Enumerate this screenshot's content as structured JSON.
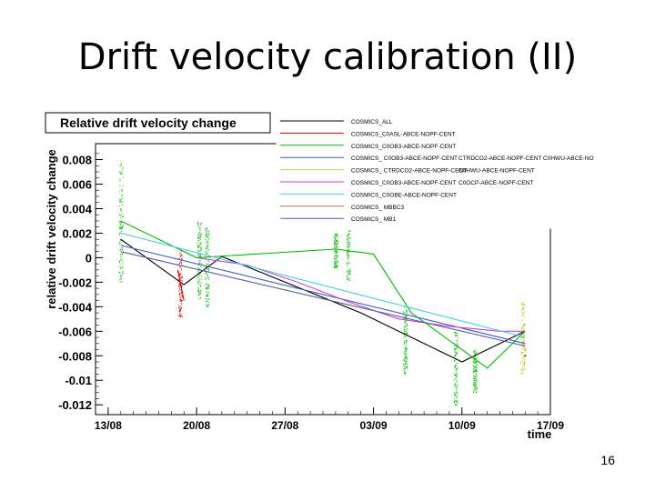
{
  "slide": {
    "title": "Drift velocity calibration (II)",
    "page_number": "16"
  },
  "chart_data": {
    "type": "scatter",
    "title": "Relative drift velocity change",
    "xlabel": "time",
    "ylabel": "relative drift velocity change",
    "x_ticks": [
      "13/08",
      "20/08",
      "27/08",
      "03/09",
      "10/09",
      "17/09"
    ],
    "y_ticks": [
      "0.008",
      "0.006",
      "0.004",
      "0.002",
      "0",
      "-0.002",
      "-0.004",
      "-0.006",
      "-0.008",
      "-0.01",
      "-0.012"
    ],
    "xlim": [
      "2008-08-12",
      "2008-09-17"
    ],
    "ylim": [
      -0.0128,
      0.0093
    ],
    "grid": false,
    "legend_position": "top-right",
    "series": [
      {
        "name": "COSMICS_ALL",
        "color": "#000000",
        "x": [
          "2008-08-14",
          "2008-08-19",
          "2008-08-22",
          "2008-09-02",
          "2008-09-10",
          "2008-09-15"
        ],
        "y": [
          0.0015,
          -0.0022,
          0.0001,
          -0.0045,
          -0.0085,
          -0.006
        ]
      },
      {
        "name": "COSMICS_C0ASL-ABCE-NOPF-CENT",
        "color": "#e00000",
        "x": [
          "2008-08-18.5",
          "2008-08-19"
        ],
        "y": [
          -0.001,
          -0.0035
        ]
      },
      {
        "name": "COSMICS_C0OB3-ABCE-NOPF-CENT",
        "color": "#00c000",
        "x": [
          "2008-08-14",
          "2008-08-20",
          "2008-08-31",
          "2008-09-03",
          "2008-09-06",
          "2008-09-08",
          "2008-09-10",
          "2008-09-12",
          "2008-09-15"
        ],
        "y": [
          0.003,
          0.0,
          0.0007,
          0.0003,
          -0.0045,
          -0.006,
          -0.0075,
          -0.009,
          -0.006
        ]
      },
      {
        "name": "COSMICS_ C0OB3-ABCE-NOPF-CENT",
        "color": "#3a5fcd",
        "x": [
          "2008-08-14",
          "2008-09-15"
        ],
        "y": [
          0.001,
          -0.007
        ]
      },
      {
        "name": "COSMICS_ CTRDCO2-ABCE-NOPF-CENT",
        "color": "#d4c85c",
        "x": [
          "2008-09-15"
        ],
        "y": [
          -0.0075
        ]
      },
      {
        "name": "COSMICS_C0OB3-ABCE-NOPF-CENT",
        "color": "#d040d0",
        "x": [
          "2008-08-20",
          "2008-08-24",
          "2008-08-28",
          "2008-09-01",
          "2008-09-05",
          "2008-09-09",
          "2008-09-13",
          "2008-09-15"
        ],
        "y": [
          0.0,
          -0.0006,
          -0.002,
          -0.0036,
          -0.005,
          -0.0056,
          -0.006,
          -0.006
        ]
      },
      {
        "name": "COSMICS_C0OBE-ABCE-NOPF-CENT",
        "color": "#40d0e0",
        "x": [
          "2008-08-14",
          "2008-09-15"
        ],
        "y": [
          0.002,
          -0.0065
        ]
      },
      {
        "name": "COSMICS_ MBBC3",
        "color": "#c07040",
        "x": [
          "2008-09-15"
        ],
        "y": [
          -0.008
        ]
      },
      {
        "name": "COSMICS_ MB1",
        "color": "#5a5aa0",
        "x": [
          "2008-08-14",
          "2008-09-15"
        ],
        "y": [
          0.0005,
          -0.0072
        ]
      }
    ],
    "legend_extra": [
      "CTRDCO2-ABCE-NOPF-CENT C0HWU-ABCE-NO",
      "C0HWU-ABCE-NOPF-CENT",
      "C0OCP-ABCE-NOPF-CENT"
    ]
  }
}
